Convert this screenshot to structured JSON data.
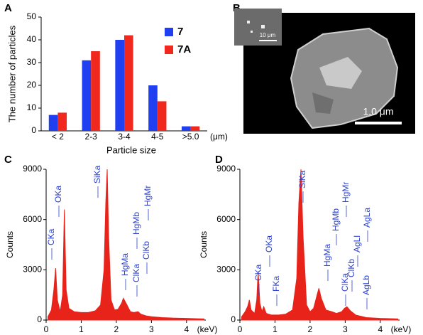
{
  "panel_labels": [
    "A",
    "B",
    "C",
    "D"
  ],
  "image": {
    "scale_bar": "1.0 μm",
    "inset_scale_bar": "10 μm"
  },
  "chart_data": [
    {
      "type": "bar",
      "xlabel": "Particle size",
      "xunit": "(μm)",
      "ylabel": "The number of particles",
      "categories": [
        "< 2",
        "2-3",
        "3-4",
        "4-5",
        ">5.0"
      ],
      "series": [
        {
          "name": "7",
          "color": "#1f3ff0",
          "values": [
            7,
            31,
            40,
            20,
            2
          ]
        },
        {
          "name": "7A",
          "color": "#f0281e",
          "values": [
            8,
            35,
            42,
            13,
            2
          ]
        }
      ],
      "ylim": [
        0,
        50
      ],
      "yticks": [
        0,
        10,
        20,
        30,
        40,
        50
      ],
      "legend": "upper right"
    },
    {
      "type": "area",
      "ylabel": "Counts",
      "xunit": "(keV)",
      "color": "#e8231a",
      "x": [
        0.05,
        0.15,
        0.22,
        0.27,
        0.32,
        0.4,
        0.47,
        0.52,
        0.57,
        0.65,
        0.8,
        1.0,
        1.2,
        1.4,
        1.55,
        1.65,
        1.7,
        1.74,
        1.78,
        1.85,
        1.95,
        2.05,
        2.15,
        2.2,
        2.28,
        2.4,
        2.5,
        2.62,
        2.7,
        2.85,
        3.0,
        3.3,
        3.6,
        4.0,
        4.3,
        4.5
      ],
      "values": [
        200,
        600,
        1800,
        3100,
        1200,
        500,
        1500,
        6600,
        1800,
        700,
        500,
        450,
        450,
        550,
        900,
        3000,
        7000,
        9000,
        5000,
        1200,
        600,
        650,
        1000,
        1300,
        1000,
        500,
        450,
        500,
        350,
        250,
        200,
        150,
        120,
        100,
        80,
        70
      ],
      "xlim": [
        0,
        4.55
      ],
      "xticks": [
        0,
        1,
        2,
        3,
        4
      ],
      "ylim": [
        0,
        9000
      ],
      "yticks": [
        0,
        3000,
        6000,
        9000
      ],
      "annotations": [
        "CKa",
        "OKa",
        "SiKa",
        "HgMa",
        "HgMb",
        "HgMr",
        "ClKa",
        "ClKb"
      ]
    },
    {
      "type": "area",
      "ylabel": "Counts",
      "xunit": "(keV)",
      "color": "#e8231a",
      "x": [
        0.05,
        0.15,
        0.22,
        0.27,
        0.32,
        0.42,
        0.48,
        0.52,
        0.57,
        0.63,
        0.68,
        0.75,
        0.9,
        1.1,
        1.3,
        1.5,
        1.62,
        1.68,
        1.74,
        1.8,
        1.9,
        2.0,
        2.1,
        2.2,
        2.25,
        2.32,
        2.45,
        2.62,
        2.75,
        2.9,
        2.98,
        3.05,
        3.15,
        3.3,
        3.6,
        4.0,
        4.5
      ],
      "values": [
        200,
        500,
        800,
        1200,
        600,
        400,
        1200,
        2900,
        1000,
        500,
        800,
        400,
        300,
        300,
        350,
        600,
        2500,
        7000,
        9000,
        5000,
        900,
        500,
        700,
        1500,
        1900,
        1300,
        600,
        500,
        400,
        500,
        700,
        800,
        550,
        300,
        150,
        100,
        70
      ],
      "xlim": [
        0,
        4.55
      ],
      "xticks": [
        0,
        1,
        2,
        3,
        4
      ],
      "ylim": [
        0,
        9000
      ],
      "yticks": [
        0,
        3000,
        6000,
        9000
      ],
      "annotations": [
        "CKa",
        "OKa",
        "FKa",
        "SiKa",
        "HgMa",
        "HgMb",
        "HgMr",
        "ClKa",
        "ClKb",
        "AgLl",
        "AgLa",
        "AgLb"
      ]
    }
  ]
}
